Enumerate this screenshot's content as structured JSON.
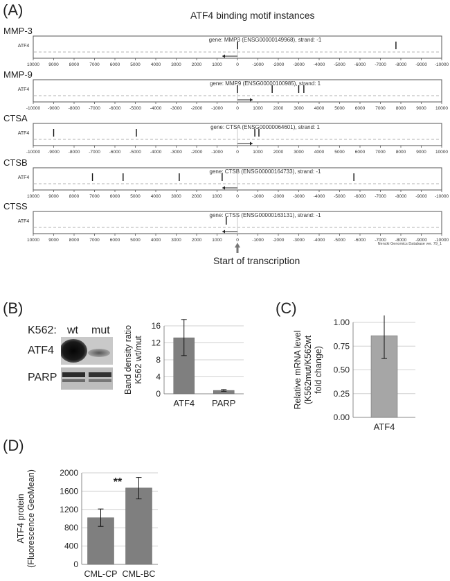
{
  "panel_a": {
    "label": "(A)",
    "title": "ATF4 binding motif instances",
    "row_label": "ATF4",
    "footnote": "Nencki Genomics Database ver. 79_1",
    "tss_label": "Start of transcription",
    "genes": [
      {
        "name": "MMP-3",
        "header": "gene: MMP3 (ENSG00000149968), strand: -1",
        "strand": -1,
        "ticks": [
          "10000",
          "9000",
          "8000",
          "7000",
          "6000",
          "5000",
          "4000",
          "3000",
          "2000",
          "1000",
          "0",
          "-1000",
          "-2000",
          "-3000",
          "-4000",
          "-5000",
          "-6000",
          "-7000",
          "-8000",
          "-9000",
          "-10000"
        ],
        "sites": [
          -10,
          -7760
        ]
      },
      {
        "name": "MMP-9",
        "header": "gene: MMP9 (ENSG00000100985), strand: 1",
        "strand": 1,
        "ticks": [
          "-10000",
          "-9000",
          "-8000",
          "-7000",
          "-6000",
          "-5000",
          "-4000",
          "-3000",
          "-2000",
          "-1000",
          "0",
          "1000",
          "2000",
          "3000",
          "4000",
          "5000",
          "6000",
          "7000",
          "8000",
          "9000",
          "10000"
        ],
        "sites": [
          0,
          1700,
          3000,
          3250
        ]
      },
      {
        "name": "CTSA",
        "header": "gene: CTSA (ENSG00000064601), strand: 1",
        "strand": 1,
        "ticks": [
          "-10000",
          "-9000",
          "-8000",
          "-7000",
          "-6000",
          "-5000",
          "-4000",
          "-3000",
          "-2000",
          "-1000",
          "0",
          "1000",
          "2000",
          "3000",
          "4000",
          "5000",
          "6000",
          "7000",
          "8000",
          "9000",
          "10000"
        ],
        "sites": [
          -9000,
          -4950,
          850,
          1050
        ]
      },
      {
        "name": "CTSB",
        "header": "gene: CTSB (ENSG00000164733), strand: -1",
        "strand": -1,
        "ticks": [
          "10000",
          "9000",
          "8000",
          "7000",
          "6000",
          "5000",
          "4000",
          "3000",
          "2000",
          "1000",
          "0",
          "-1000",
          "-2000",
          "-3000",
          "-4000",
          "-5000",
          "-6000",
          "-7000",
          "-8000",
          "-9000",
          "-10000"
        ],
        "sites": [
          7100,
          5600,
          2850,
          750,
          -5700
        ]
      },
      {
        "name": "CTSS",
        "header": "gene: CTSS (ENSG00000163131), strand: -1",
        "strand": -1,
        "ticks": [
          "10000",
          "9000",
          "8000",
          "7000",
          "6000",
          "5000",
          "4000",
          "3000",
          "2000",
          "1000",
          "0",
          "-1000",
          "-2000",
          "-3000",
          "-4000",
          "-5000",
          "-6000",
          "-7000",
          "-8000",
          "-9000",
          "-10000"
        ],
        "sites": [
          550
        ]
      }
    ]
  },
  "panel_b": {
    "label": "(B)",
    "cell_line": "K562:",
    "lane_labels": [
      "wt",
      "mut"
    ],
    "proteins": [
      "ATF4",
      "PARP"
    ],
    "chart_data": {
      "type": "bar",
      "categories": [
        "ATF4",
        "PARP"
      ],
      "values": [
        13.2,
        0.8
      ],
      "errors": [
        [
          9.0,
          17.5
        ],
        [
          0.6,
          1.0
        ]
      ],
      "ylabel": "Band density ratio\nK562 wt/mut",
      "ylabel_lines": [
        "Band density ratio",
        "K562 wt/mut"
      ],
      "ylim": [
        0,
        16
      ],
      "yticks": [
        "0",
        "4",
        "8",
        "12",
        "16"
      ],
      "grid": true,
      "bar_color": "#7f7f7f"
    }
  },
  "panel_c": {
    "label": "(C)",
    "chart_data": {
      "type": "bar",
      "categories": [
        "ATF4"
      ],
      "values": [
        0.86
      ],
      "errors": [
        [
          0.62,
          1.11
        ]
      ],
      "ylabel": "Relative mRNA level\n(K562mut/K562wt\nfold change)",
      "ylabel_lines": [
        "Relative mRNA level",
        "(K562mut/K562wt",
        "fold change)"
      ],
      "ylim": [
        0,
        1.0
      ],
      "yticks": [
        "0.00",
        "0.25",
        "0.50",
        "0.75",
        "1.00"
      ],
      "grid": true,
      "bar_color": "#a6a6a6"
    }
  },
  "panel_d": {
    "label": "(D)",
    "significance": "**",
    "chart_data": {
      "type": "bar",
      "categories": [
        "CML-CP",
        "CML-BC"
      ],
      "values": [
        1020,
        1670
      ],
      "errors": [
        [
          830,
          1210
        ],
        [
          1430,
          1900
        ]
      ],
      "ylabel": "ATF4 protein\n(Fluorescence GeoMean)",
      "ylabel_lines": [
        "ATF4 protein",
        "(Fluorescence GeoMean)"
      ],
      "ylim": [
        0,
        2000
      ],
      "yticks": [
        "0",
        "400",
        "800",
        "1200",
        "1600",
        "2000"
      ],
      "grid": true,
      "bar_color": "#7f7f7f"
    }
  }
}
